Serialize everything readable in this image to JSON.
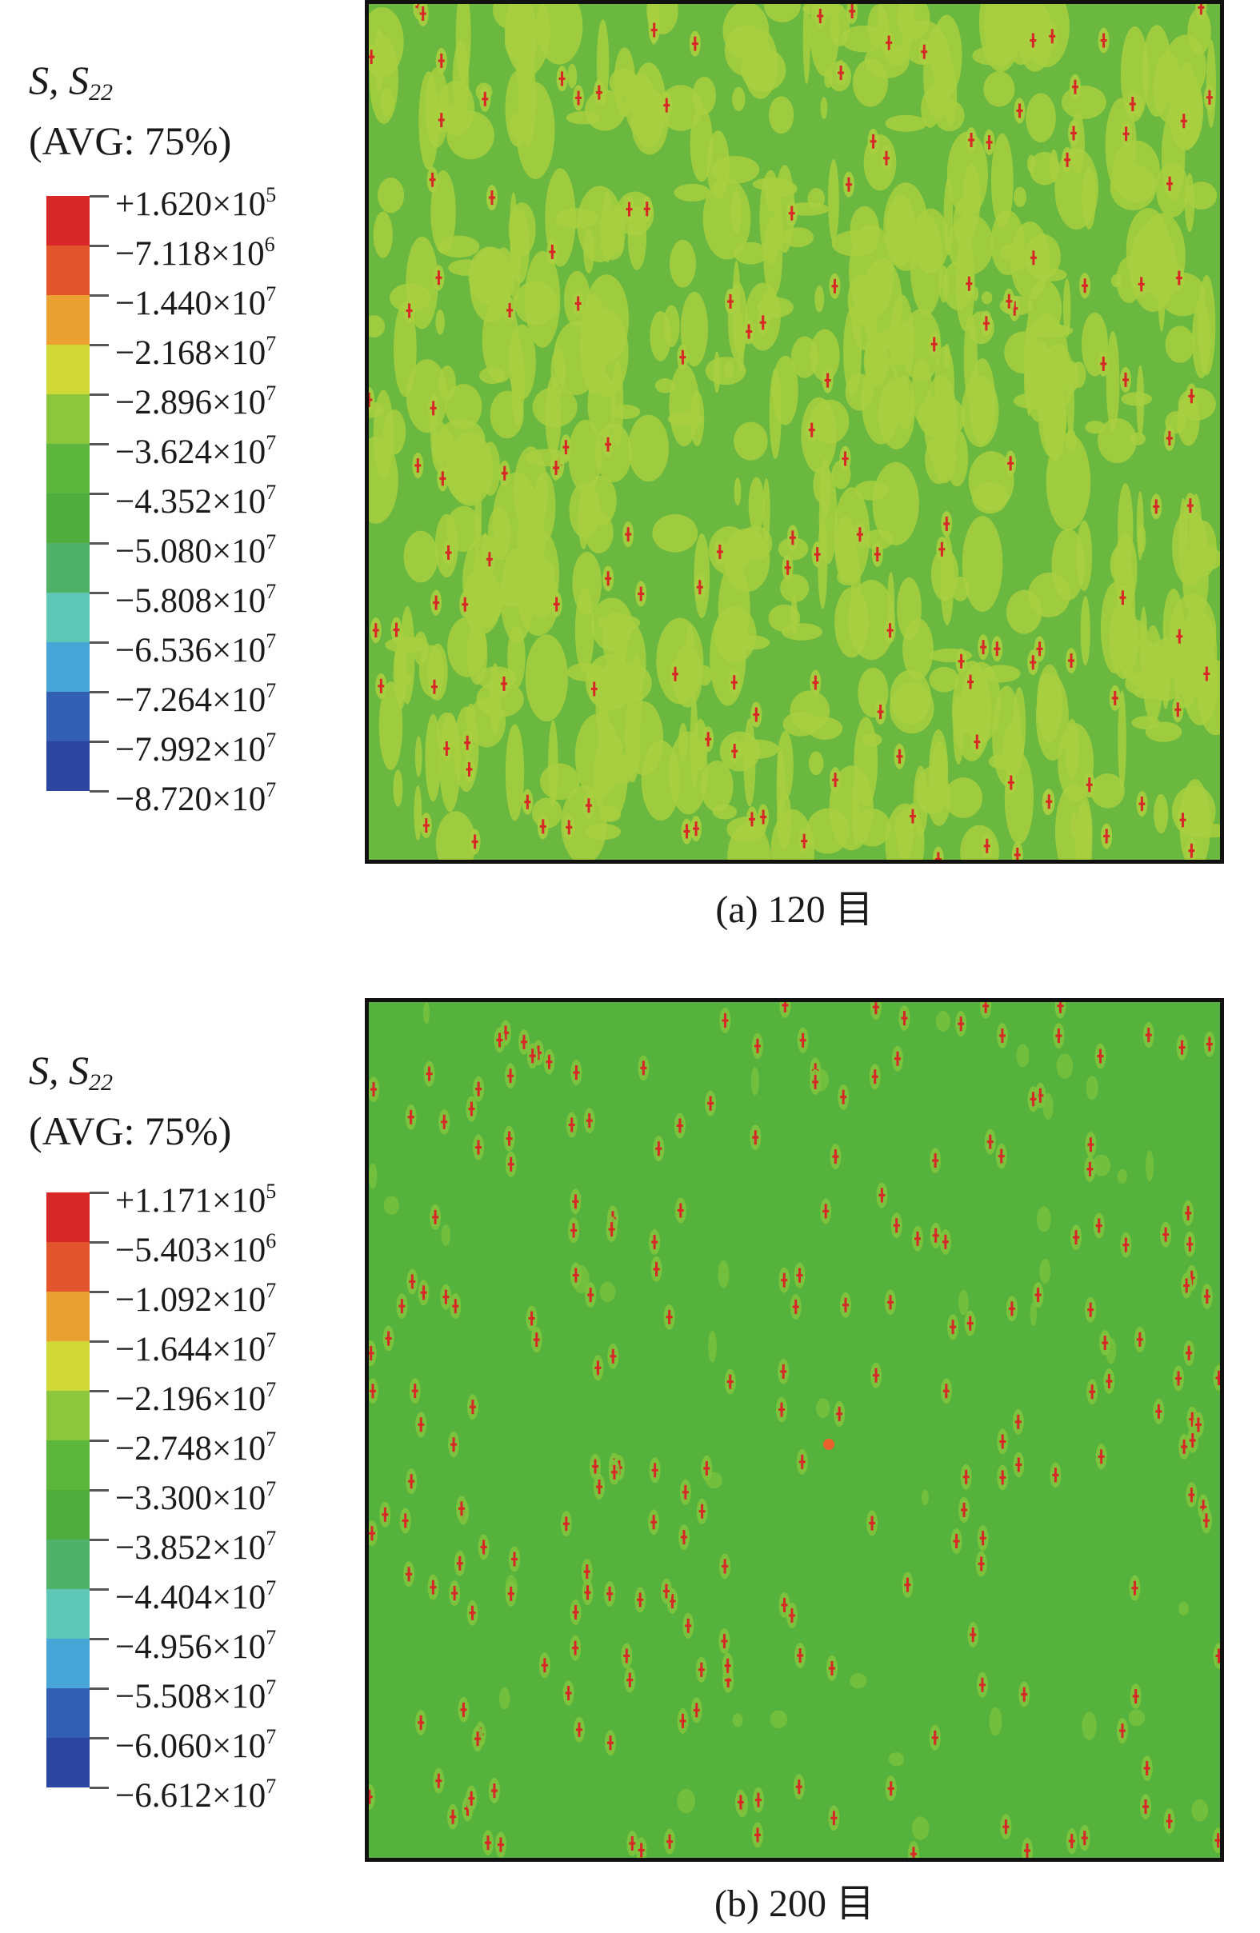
{
  "panels": [
    {
      "legend": {
        "title_var": "S, S",
        "title_sub": "22",
        "title_avg": "(AVG: 75%)",
        "colors": [
          "#d82727",
          "#e2542c",
          "#eba032",
          "#cfd837",
          "#8cc63c",
          "#5cb63c",
          "#4fad3d",
          "#4fb268",
          "#5ec6b4",
          "#48a5d8",
          "#325fb4",
          "#2b45a0"
        ],
        "labels": [
          {
            "mantissa": "+1.620×10",
            "exp": "5"
          },
          {
            "mantissa": "−7.118×10",
            "exp": "6"
          },
          {
            "mantissa": "−1.440×10",
            "exp": "7"
          },
          {
            "mantissa": "−2.168×10",
            "exp": "7"
          },
          {
            "mantissa": "−2.896×10",
            "exp": "7"
          },
          {
            "mantissa": "−3.624×10",
            "exp": "7"
          },
          {
            "mantissa": "−4.352×10",
            "exp": "7"
          },
          {
            "mantissa": "−5.080×10",
            "exp": "7"
          },
          {
            "mantissa": "−5.808×10",
            "exp": "7"
          },
          {
            "mantissa": "−6.536×10",
            "exp": "7"
          },
          {
            "mantissa": "−7.264×10",
            "exp": "7"
          },
          {
            "mantissa": "−7.992×10",
            "exp": "7"
          },
          {
            "mantissa": "−8.720×10",
            "exp": "7"
          }
        ]
      },
      "plot": {
        "background": "#6ab83f",
        "patch_color": "#a8cf3f",
        "hotspot_color": "#d82727"
      },
      "caption": "(a) 120 目"
    },
    {
      "legend": {
        "title_var": "S, S",
        "title_sub": "22",
        "title_avg": "(AVG: 75%)",
        "colors": [
          "#d82727",
          "#e2542c",
          "#eba032",
          "#cfd837",
          "#8cc63c",
          "#5cb63c",
          "#4fad3d",
          "#4fb268",
          "#5ec6b4",
          "#48a5d8",
          "#325fb4",
          "#2b45a0"
        ],
        "labels": [
          {
            "mantissa": "+1.171×10",
            "exp": "5"
          },
          {
            "mantissa": "−5.403×10",
            "exp": "6"
          },
          {
            "mantissa": "−1.092×10",
            "exp": "7"
          },
          {
            "mantissa": "−1.644×10",
            "exp": "7"
          },
          {
            "mantissa": "−2.196×10",
            "exp": "7"
          },
          {
            "mantissa": "−2.748×10",
            "exp": "7"
          },
          {
            "mantissa": "−3.300×10",
            "exp": "7"
          },
          {
            "mantissa": "−3.852×10",
            "exp": "7"
          },
          {
            "mantissa": "−4.404×10",
            "exp": "7"
          },
          {
            "mantissa": "−4.956×10",
            "exp": "7"
          },
          {
            "mantissa": "−5.508×10",
            "exp": "7"
          },
          {
            "mantissa": "−6.060×10",
            "exp": "7"
          },
          {
            "mantissa": "−6.612×10",
            "exp": "7"
          }
        ]
      },
      "plot": {
        "background": "#55b23c",
        "patch_color": "#7fc33d",
        "hotspot_color": "#d82727",
        "highlight_color": "#e8612c"
      },
      "caption": "(b) 200 目"
    }
  ]
}
